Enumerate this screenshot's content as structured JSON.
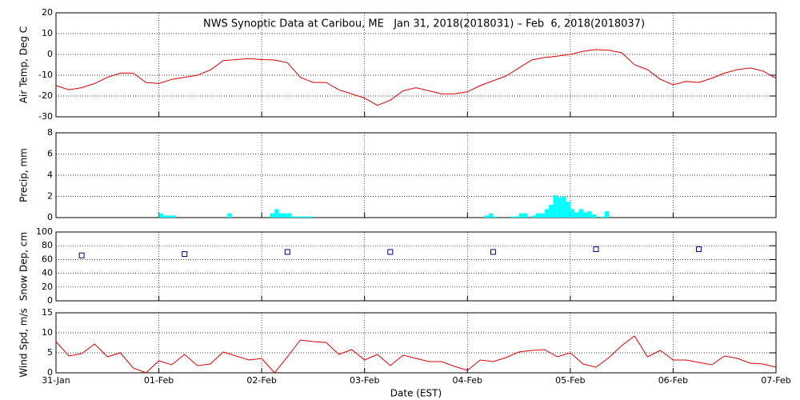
{
  "chart_data": [
    {
      "type": "line",
      "title": "NWS Synoptic Data at Caribou, ME   Jan 31, 2018(2018031) – Feb  6, 2018(2018037)",
      "ylabel": "Air Temp, Deg C",
      "color": "#dd0000",
      "grid": true,
      "xlim": [
        0,
        168
      ],
      "xticks": [
        0,
        24,
        48,
        72,
        96,
        120,
        144,
        168
      ],
      "ylim": [
        -30,
        20
      ],
      "yticks": [
        -30,
        -20,
        -10,
        0,
        10,
        20
      ],
      "x": [
        0,
        3,
        6,
        9,
        12,
        15,
        18,
        21,
        24,
        27,
        30,
        33,
        36,
        39,
        42,
        45,
        48,
        51,
        54,
        57,
        60,
        63,
        66,
        69,
        72,
        75,
        78,
        81,
        84,
        87,
        90,
        93,
        96,
        99,
        102,
        105,
        108,
        111,
        114,
        117,
        120,
        123,
        126,
        129,
        132,
        135,
        138,
        141,
        144,
        147,
        150,
        153,
        156,
        159,
        162,
        165,
        168
      ],
      "values": [
        -15,
        -17,
        -16,
        -14,
        -11,
        -9,
        -9,
        -13.5,
        -14,
        -12,
        -11,
        -10,
        -7.5,
        -3,
        -2.5,
        -2,
        -2.5,
        -2.7,
        -4,
        -11,
        -13.5,
        -13.5,
        -17,
        -19,
        -21,
        -24.5,
        -22,
        -17.5,
        -16,
        -17.5,
        -19,
        -19,
        -18,
        -15,
        -12.7,
        -10.4,
        -6.5,
        -2.7,
        -1.5,
        -0.8,
        0,
        1.5,
        2.3,
        2,
        0.8,
        -5,
        -7.3,
        -12,
        -14.6,
        -13,
        -13.5,
        -11.5,
        -9,
        -7.3,
        -6.5,
        -8,
        -11.5
      ]
    },
    {
      "type": "bar",
      "ylabel": "Precip, mm",
      "color": "#00ffff",
      "grid": true,
      "xlim": [
        0,
        168
      ],
      "xticks": [
        0,
        24,
        48,
        72,
        96,
        120,
        144,
        168
      ],
      "ylim": [
        0,
        8
      ],
      "yticks": [
        0,
        2,
        4,
        6,
        8
      ],
      "x": [
        24,
        25,
        26,
        27,
        40,
        50,
        51,
        52,
        53,
        54,
        55,
        56,
        57,
        58,
        59,
        100,
        101,
        102,
        106,
        107,
        108,
        109,
        111,
        112,
        113,
        114,
        115,
        116,
        117,
        118,
        119,
        120,
        121,
        122,
        123,
        124,
        125,
        127,
        128
      ],
      "values": [
        0.4,
        0.2,
        0.2,
        0.2,
        0.4,
        0.4,
        0.8,
        0.4,
        0.4,
        0.4,
        0.1,
        0.1,
        0.1,
        0.1,
        0.1,
        0.2,
        0.4,
        0.1,
        0.1,
        0.1,
        0.4,
        0.4,
        0.2,
        0.4,
        0.4,
        0.8,
        1.2,
        2.1,
        1.9,
        2.0,
        1.5,
        0.8,
        0.5,
        0.8,
        0.5,
        0.6,
        0.3,
        0.1,
        0.6
      ]
    },
    {
      "type": "scatter",
      "ylabel": "Snow Dep, cm",
      "color": "#000080",
      "grid": true,
      "xlim": [
        0,
        168
      ],
      "xticks": [
        0,
        24,
        48,
        72,
        96,
        120,
        144,
        168
      ],
      "ylim": [
        0,
        100
      ],
      "yticks": [
        0,
        20,
        40,
        60,
        80,
        100
      ],
      "x": [
        6,
        30,
        54,
        78,
        102,
        126,
        150
      ],
      "values": [
        66,
        68,
        71,
        71,
        71,
        75,
        75
      ]
    },
    {
      "type": "line",
      "ylabel": "Wind Spd, m/s",
      "xlabel": "Date (EST)",
      "color": "#dd0000",
      "grid": true,
      "xlim": [
        0,
        168
      ],
      "xticks": [
        {
          "value": 0,
          "label": "31-Jan"
        },
        {
          "value": 24,
          "label": "01-Feb"
        },
        {
          "value": 48,
          "label": "02-Feb"
        },
        {
          "value": 72,
          "label": "03-Feb"
        },
        {
          "value": 96,
          "label": "04-Feb"
        },
        {
          "value": 120,
          "label": "05-Feb"
        },
        {
          "value": 144,
          "label": "06-Feb"
        },
        {
          "value": 168,
          "label": "07-Feb"
        }
      ],
      "ylim": [
        0,
        15
      ],
      "yticks": [
        0,
        5,
        10,
        15
      ],
      "x": [
        0,
        3,
        6,
        9,
        12,
        15,
        18,
        21,
        24,
        27,
        30,
        33,
        36,
        39,
        42,
        45,
        48,
        51,
        54,
        57,
        60,
        63,
        66,
        69,
        72,
        75,
        78,
        81,
        84,
        87,
        90,
        93,
        96,
        99,
        102,
        105,
        108,
        111,
        114,
        117,
        120,
        123,
        126,
        129,
        132,
        135,
        138,
        141,
        144,
        147,
        150,
        153,
        156,
        159,
        162,
        165,
        168
      ],
      "values": [
        7.8,
        4.2,
        4.8,
        7.2,
        4,
        5,
        1.2,
        0,
        3,
        2,
        4.6,
        1.8,
        2.2,
        5.2,
        4.2,
        3.2,
        3.6,
        0,
        4,
        8.2,
        7.8,
        7.6,
        4.6,
        5.8,
        3.2,
        4.6,
        1.8,
        4.4,
        3.6,
        2.8,
        2.8,
        1.6,
        0.6,
        3.2,
        2.8,
        3.8,
        5.2,
        5.6,
        5.8,
        4,
        5,
        2.2,
        1.4,
        3.8,
        6.8,
        9.2,
        4,
        5.6,
        3.2,
        3.2,
        2.6,
        2,
        4.2,
        3.6,
        2.4,
        2.2,
        1.4
      ]
    }
  ]
}
